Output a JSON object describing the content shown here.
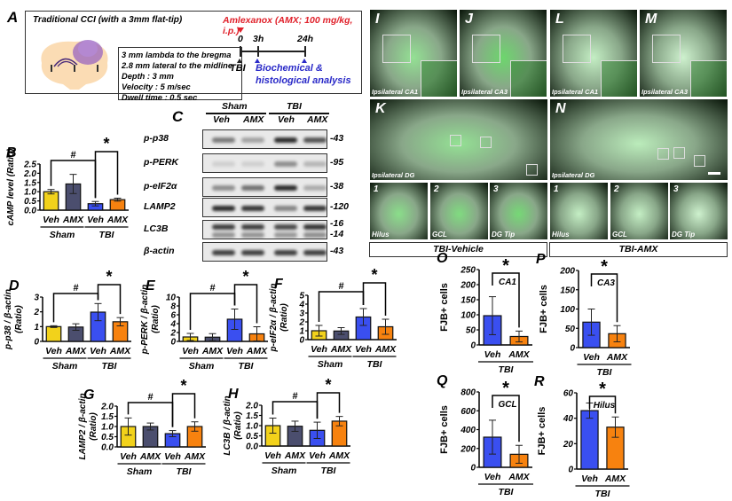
{
  "colors": {
    "sham_veh": "#f2d21b",
    "sham_amx": "#4b4e6e",
    "tbi_veh": "#3a4ff0",
    "tbi_amx": "#f7820f",
    "amx_red": "#e0202a",
    "analysis_blue": "#2a2ac8",
    "brain": "#fbdcb4",
    "lesion": "#9a66c0"
  },
  "panelA": {
    "label": "A",
    "title": "Traditional CCI (with a 3mm flat-tip)",
    "params": [
      "3 mm lambda to the bregma",
      "2.8 mm lateral to the midline",
      "Depth : 3 mm",
      "Velocity : 5 m/sec",
      "Dwell time : 0.5 sec"
    ],
    "drug": "Amlexanox (AMX; 100 mg/kg, i.p.)",
    "timeline": [
      "0",
      "3h",
      "24h"
    ],
    "tbi": "TBI",
    "analysis_line1": "Biochemical &",
    "analysis_line2": "histological analysis"
  },
  "panelC": {
    "label": "C",
    "groups": [
      "Sham",
      "TBI"
    ],
    "lanes": [
      "Veh",
      "AMX",
      "Veh",
      "AMX"
    ],
    "blots": [
      {
        "name": "p-p38",
        "kda": "-43",
        "intensity": [
          0.55,
          0.35,
          0.95,
          0.75
        ]
      },
      {
        "name": "p-PERK",
        "kda": "-95",
        "intensity": [
          0.12,
          0.12,
          0.45,
          0.25
        ]
      },
      {
        "name": "p-eIF2α",
        "kda": "-38",
        "intensity": [
          0.45,
          0.6,
          0.95,
          0.3
        ]
      },
      {
        "name": "LAMP2",
        "kda": "-120",
        "intensity": [
          0.95,
          0.9,
          0.5,
          0.9
        ]
      },
      {
        "name": "LC3B",
        "kda": "-16",
        "kda2": "-14",
        "intensity": [
          0.85,
          0.85,
          0.8,
          0.9
        ]
      },
      {
        "name": "β-actin",
        "kda": "-43",
        "intensity": [
          0.85,
          0.85,
          0.85,
          0.85
        ]
      }
    ]
  },
  "histology": {
    "panels_top": [
      {
        "letter": "I",
        "caption": "Ipsilateral CA1"
      },
      {
        "letter": "J",
        "caption": "Ipsilateral CA3"
      },
      {
        "letter": "L",
        "caption": "Ipsilateral CA1"
      },
      {
        "letter": "M",
        "caption": "Ipsilateral CA3"
      }
    ],
    "panels_mid": [
      {
        "letter": "K",
        "caption": "Ipsilateral DG"
      },
      {
        "letter": "N",
        "caption": "Ipsilateral DG"
      }
    ],
    "panels_zoom": [
      {
        "num": "1",
        "caption": "Hilus"
      },
      {
        "num": "2",
        "caption": "GCL"
      },
      {
        "num": "3",
        "caption": "DG Tip"
      },
      {
        "num": "1",
        "caption": "Hilus"
      },
      {
        "num": "2",
        "caption": "GCL"
      },
      {
        "num": "3",
        "caption": "DG Tip"
      }
    ],
    "group_labels": [
      "TBI-Vehicle",
      "TBI-AMX"
    ]
  },
  "chart_data": [
    {
      "id": "B",
      "type": "bar",
      "title": "",
      "ylabel": "cAMP level (Ratio)",
      "categories": [
        "Veh",
        "AMX",
        "Veh",
        "AMX"
      ],
      "groups": [
        "Sham",
        "TBI"
      ],
      "values": [
        1.0,
        1.42,
        0.35,
        0.57
      ],
      "errors": [
        0.12,
        0.52,
        0.12,
        0.08
      ],
      "ylim": [
        0,
        2.5
      ],
      "yticks": [
        "0.0",
        "0.5",
        "1.0",
        "1.5",
        "2.0",
        "2.5"
      ],
      "significance": [
        {
          "between": [
            0,
            2
          ],
          "mark": "#"
        },
        {
          "between": [
            2,
            3
          ],
          "mark": "*"
        }
      ]
    },
    {
      "id": "D",
      "type": "bar",
      "ylabel": "p-p38 / β-actin (Ratio)",
      "categories": [
        "Veh",
        "AMX",
        "Veh",
        "AMX"
      ],
      "groups": [
        "Sham",
        "TBI"
      ],
      "values": [
        1.0,
        0.97,
        1.98,
        1.33
      ],
      "errors": [
        0.06,
        0.22,
        0.58,
        0.28
      ],
      "ylim": [
        0,
        3
      ],
      "yticks": [
        "0",
        "1",
        "2",
        "3"
      ],
      "significance": [
        {
          "between": [
            0,
            2
          ],
          "mark": "#"
        },
        {
          "between": [
            2,
            3
          ],
          "mark": "*"
        }
      ]
    },
    {
      "id": "E",
      "type": "bar",
      "ylabel": "p-PERK / β-actin (Ratio)",
      "categories": [
        "Veh",
        "AMX",
        "Veh",
        "AMX"
      ],
      "groups": [
        "Sham",
        "TBI"
      ],
      "values": [
        1.0,
        0.95,
        5.0,
        1.7
      ],
      "errors": [
        0.8,
        0.8,
        2.3,
        1.6
      ],
      "ylim": [
        0,
        10
      ],
      "yticks": [
        "0",
        "2",
        "4",
        "6",
        "8",
        "10"
      ],
      "significance": [
        {
          "between": [
            0,
            2
          ],
          "mark": "#"
        },
        {
          "between": [
            2,
            3
          ],
          "mark": "*"
        }
      ]
    },
    {
      "id": "F",
      "type": "bar",
      "ylabel": "p-eIF2α / β-actin (Ratio)",
      "categories": [
        "Veh",
        "AMX",
        "Veh",
        "AMX"
      ],
      "groups": [
        "Sham",
        "TBI"
      ],
      "values": [
        1.0,
        0.97,
        2.55,
        1.45
      ],
      "errors": [
        0.6,
        0.38,
        0.95,
        0.85
      ],
      "ylim": [
        0,
        5
      ],
      "yticks": [
        "0",
        "1",
        "2",
        "3",
        "4",
        "5"
      ],
      "significance": [
        {
          "between": [
            0,
            2
          ],
          "mark": "#"
        },
        {
          "between": [
            2,
            3
          ],
          "mark": "*"
        }
      ]
    },
    {
      "id": "G",
      "type": "bar",
      "ylabel": "LAMP2 / β-actin (Ratio)",
      "categories": [
        "Veh",
        "AMX",
        "Veh",
        "AMX"
      ],
      "groups": [
        "Sham",
        "TBI"
      ],
      "values": [
        1.0,
        1.0,
        0.65,
        1.0
      ],
      "errors": [
        0.42,
        0.17,
        0.15,
        0.23
      ],
      "ylim": [
        0,
        2.0
      ],
      "yticks": [
        "0.0",
        "0.5",
        "1.0",
        "1.5",
        "2.0"
      ],
      "significance": [
        {
          "between": [
            0,
            2
          ],
          "mark": "#"
        },
        {
          "between": [
            2,
            3
          ],
          "mark": "*"
        }
      ]
    },
    {
      "id": "H",
      "type": "bar",
      "ylabel": "LC3B / β-actin (Ratio)",
      "categories": [
        "Veh",
        "AMX",
        "Veh",
        "AMX"
      ],
      "groups": [
        "Sham",
        "TBI"
      ],
      "values": [
        1.0,
        0.97,
        0.77,
        1.22
      ],
      "errors": [
        0.37,
        0.25,
        0.4,
        0.23
      ],
      "ylim": [
        0,
        2.0
      ],
      "yticks": [
        "0.0",
        "0.5",
        "1.0",
        "1.5",
        "2.0"
      ],
      "significance": [
        {
          "between": [
            0,
            2
          ],
          "mark": "#"
        },
        {
          "between": [
            2,
            3
          ],
          "mark": "*"
        }
      ]
    },
    {
      "id": "O",
      "type": "bar",
      "ylabel": "FJB+ cells",
      "region": "CA1",
      "categories": [
        "Veh",
        "AMX"
      ],
      "groups": [
        "TBI"
      ],
      "values": [
        97,
        28
      ],
      "errors": [
        63,
        18
      ],
      "ylim": [
        0,
        250
      ],
      "yticks": [
        "0",
        "50",
        "100",
        "150",
        "200",
        "250"
      ],
      "significance": [
        {
          "between": [
            0,
            1
          ],
          "mark": "*"
        }
      ]
    },
    {
      "id": "P",
      "type": "bar",
      "ylabel": "FJB+ cells",
      "region": "CA3",
      "categories": [
        "Veh",
        "AMX"
      ],
      "groups": [
        "TBI"
      ],
      "values": [
        66,
        36
      ],
      "errors": [
        34,
        21
      ],
      "ylim": [
        0,
        200
      ],
      "yticks": [
        "0",
        "50",
        "100",
        "150",
        "200"
      ],
      "significance": [
        {
          "between": [
            0,
            1
          ],
          "mark": "*"
        }
      ]
    },
    {
      "id": "Q",
      "type": "bar",
      "ylabel": "FJB+ cells",
      "region": "GCL",
      "categories": [
        "Veh",
        "AMX"
      ],
      "groups": [
        "TBI"
      ],
      "values": [
        320,
        138
      ],
      "errors": [
        180,
        95
      ],
      "ylim": [
        0,
        800
      ],
      "yticks": [
        "0",
        "200",
        "400",
        "600",
        "800"
      ],
      "significance": [
        {
          "between": [
            0,
            1
          ],
          "mark": "*"
        }
      ]
    },
    {
      "id": "R",
      "type": "bar",
      "ylabel": "FJB+ cells",
      "region": "Hilus",
      "categories": [
        "Veh",
        "AMX"
      ],
      "groups": [
        "TBI"
      ],
      "values": [
        46,
        33
      ],
      "errors": [
        6,
        8
      ],
      "ylim": [
        0,
        60
      ],
      "yticks": [
        "0",
        "20",
        "40",
        "60"
      ],
      "significance": [
        {
          "between": [
            0,
            1
          ],
          "mark": "*"
        }
      ]
    }
  ]
}
